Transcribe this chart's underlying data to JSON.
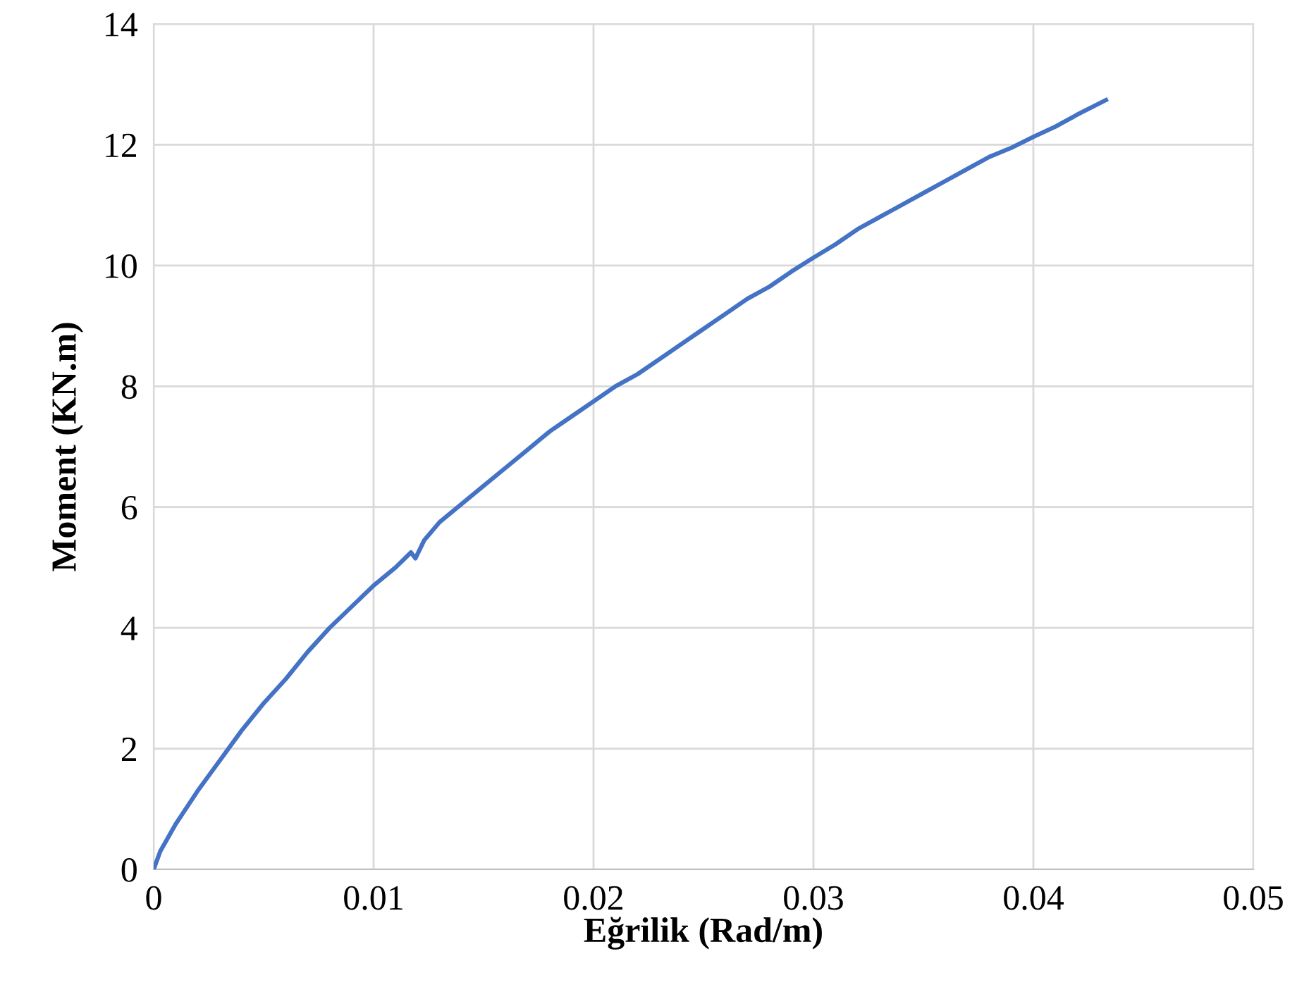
{
  "chart_data": {
    "type": "line",
    "xlabel": "Eğrilik (Rad/m)",
    "ylabel": "Moment (KN.m)",
    "series": [
      {
        "color": "#4472c4",
        "x": [
          0,
          0.0003,
          0.001,
          0.002,
          0.003,
          0.004,
          0.005,
          0.006,
          0.007,
          0.008,
          0.009,
          0.01,
          0.011,
          0.0117,
          0.0119,
          0.0123,
          0.013,
          0.014,
          0.015,
          0.016,
          0.017,
          0.018,
          0.019,
          0.02,
          0.021,
          0.022,
          0.023,
          0.024,
          0.025,
          0.026,
          0.027,
          0.028,
          0.029,
          0.03,
          0.031,
          0.032,
          0.033,
          0.034,
          0.035,
          0.036,
          0.037,
          0.038,
          0.039,
          0.04,
          0.041,
          0.042,
          0.0433
        ],
        "values": [
          0,
          0.3,
          0.75,
          1.3,
          1.8,
          2.3,
          2.75,
          3.15,
          3.6,
          4.0,
          4.35,
          4.7,
          5.0,
          5.25,
          5.15,
          5.45,
          5.75,
          6.05,
          6.35,
          6.65,
          6.95,
          7.25,
          7.5,
          7.75,
          8.0,
          8.2,
          8.45,
          8.7,
          8.95,
          9.2,
          9.45,
          9.65,
          9.9,
          10.13,
          10.35,
          10.6,
          10.8,
          11.0,
          11.2,
          11.4,
          11.6,
          11.8,
          11.95,
          12.13,
          12.3,
          12.5,
          12.74
        ]
      }
    ],
    "xlim": [
      0,
      0.05
    ],
    "xticks": [
      0,
      0.01,
      0.02,
      0.03,
      0.04,
      0.05
    ],
    "ylim": [
      0,
      14
    ],
    "yticks": [
      0,
      2,
      4,
      6,
      8,
      10,
      12,
      14
    ],
    "grid": true,
    "marker": "none",
    "line_style": "solid"
  }
}
